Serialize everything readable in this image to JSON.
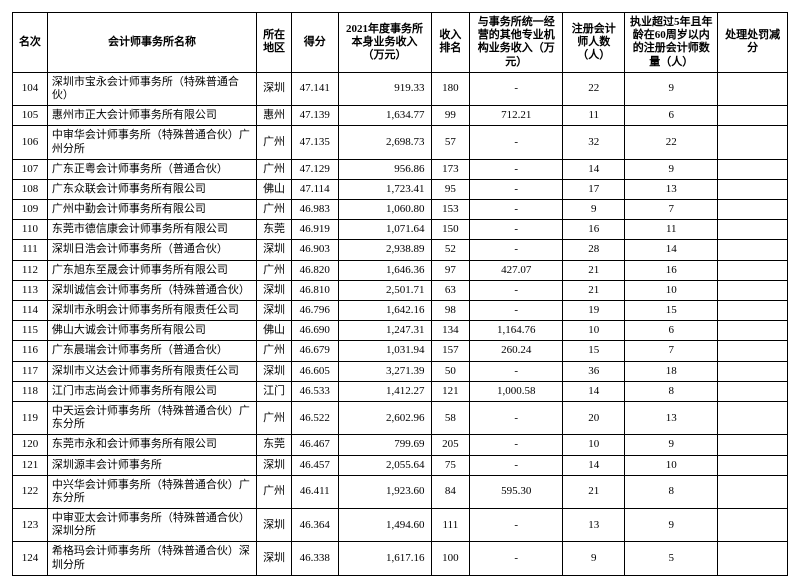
{
  "table": {
    "headers": {
      "rank": "名次",
      "name": "会计师事务所名称",
      "region": "所在地区",
      "score": "得分",
      "revenue": "2021年度事务所本身业务收入（万元）",
      "rev_rank": "收入排名",
      "other_rev": "与事务所统一经营的其他专业机构业务收入（万元）",
      "cpa_count": "注册会计师人数（人）",
      "age_cpa": "执业超过5年且年龄在60周岁以内的注册会计师数量（人）",
      "penalty": "处理处罚减分"
    },
    "rows": [
      {
        "rank": "104",
        "name": "深圳市宝永会计师事务所（特殊普通合伙）",
        "region": "深圳",
        "score": "47.141",
        "revenue": "919.33",
        "rev_rank": "180",
        "other_rev": "-",
        "cpa_count": "22",
        "age_cpa": "9",
        "penalty": ""
      },
      {
        "rank": "105",
        "name": "惠州市正大会计师事务所有限公司",
        "region": "惠州",
        "score": "47.139",
        "revenue": "1,634.77",
        "rev_rank": "99",
        "other_rev": "712.21",
        "cpa_count": "11",
        "age_cpa": "6",
        "penalty": ""
      },
      {
        "rank": "106",
        "name": "中审华会计师事务所（特殊普通合伙）广州分所",
        "region": "广州",
        "score": "47.135",
        "revenue": "2,698.73",
        "rev_rank": "57",
        "other_rev": "-",
        "cpa_count": "32",
        "age_cpa": "22",
        "penalty": ""
      },
      {
        "rank": "107",
        "name": "广东正粤会计师事务所（普通合伙）",
        "region": "广州",
        "score": "47.129",
        "revenue": "956.86",
        "rev_rank": "173",
        "other_rev": "-",
        "cpa_count": "14",
        "age_cpa": "9",
        "penalty": ""
      },
      {
        "rank": "108",
        "name": "广东众联会计师事务所有限公司",
        "region": "佛山",
        "score": "47.114",
        "revenue": "1,723.41",
        "rev_rank": "95",
        "other_rev": "-",
        "cpa_count": "17",
        "age_cpa": "13",
        "penalty": ""
      },
      {
        "rank": "109",
        "name": "广州中勤会计师事务所有限公司",
        "region": "广州",
        "score": "46.983",
        "revenue": "1,060.80",
        "rev_rank": "153",
        "other_rev": "-",
        "cpa_count": "9",
        "age_cpa": "7",
        "penalty": ""
      },
      {
        "rank": "110",
        "name": "东莞市德信康会计师事务所有限公司",
        "region": "东莞",
        "score": "46.919",
        "revenue": "1,071.64",
        "rev_rank": "150",
        "other_rev": "-",
        "cpa_count": "16",
        "age_cpa": "11",
        "penalty": ""
      },
      {
        "rank": "111",
        "name": "深圳日浩会计师事务所（普通合伙）",
        "region": "深圳",
        "score": "46.903",
        "revenue": "2,938.89",
        "rev_rank": "52",
        "other_rev": "-",
        "cpa_count": "28",
        "age_cpa": "14",
        "penalty": ""
      },
      {
        "rank": "112",
        "name": "广东旭东至晟会计师事务所有限公司",
        "region": "广州",
        "score": "46.820",
        "revenue": "1,646.36",
        "rev_rank": "97",
        "other_rev": "427.07",
        "cpa_count": "21",
        "age_cpa": "16",
        "penalty": ""
      },
      {
        "rank": "113",
        "name": "深圳诚信会计师事务所（特殊普通合伙）",
        "region": "深圳",
        "score": "46.810",
        "revenue": "2,501.71",
        "rev_rank": "63",
        "other_rev": "-",
        "cpa_count": "21",
        "age_cpa": "10",
        "penalty": ""
      },
      {
        "rank": "114",
        "name": "深圳市永明会计师事务所有限责任公司",
        "region": "深圳",
        "score": "46.796",
        "revenue": "1,642.16",
        "rev_rank": "98",
        "other_rev": "-",
        "cpa_count": "19",
        "age_cpa": "15",
        "penalty": ""
      },
      {
        "rank": "115",
        "name": "佛山大诚会计师事务所有限公司",
        "region": "佛山",
        "score": "46.690",
        "revenue": "1,247.31",
        "rev_rank": "134",
        "other_rev": "1,164.76",
        "cpa_count": "10",
        "age_cpa": "6",
        "penalty": ""
      },
      {
        "rank": "116",
        "name": "广东晨瑞会计师事务所（普通合伙）",
        "region": "广州",
        "score": "46.679",
        "revenue": "1,031.94",
        "rev_rank": "157",
        "other_rev": "260.24",
        "cpa_count": "15",
        "age_cpa": "7",
        "penalty": ""
      },
      {
        "rank": "117",
        "name": "深圳市义达会计师事务所有限责任公司",
        "region": "深圳",
        "score": "46.605",
        "revenue": "3,271.39",
        "rev_rank": "50",
        "other_rev": "-",
        "cpa_count": "36",
        "age_cpa": "18",
        "penalty": ""
      },
      {
        "rank": "118",
        "name": "江门市志尚会计师事务所有限公司",
        "region": "江门",
        "score": "46.533",
        "revenue": "1,412.27",
        "rev_rank": "121",
        "other_rev": "1,000.58",
        "cpa_count": "14",
        "age_cpa": "8",
        "penalty": ""
      },
      {
        "rank": "119",
        "name": "中天运会计师事务所（特殊普通合伙）广东分所",
        "region": "广州",
        "score": "46.522",
        "revenue": "2,602.96",
        "rev_rank": "58",
        "other_rev": "-",
        "cpa_count": "20",
        "age_cpa": "13",
        "penalty": ""
      },
      {
        "rank": "120",
        "name": "东莞市永和会计师事务所有限公司",
        "region": "东莞",
        "score": "46.467",
        "revenue": "799.69",
        "rev_rank": "205",
        "other_rev": "-",
        "cpa_count": "10",
        "age_cpa": "9",
        "penalty": ""
      },
      {
        "rank": "121",
        "name": "深圳源丰会计师事务所",
        "region": "深圳",
        "score": "46.457",
        "revenue": "2,055.64",
        "rev_rank": "75",
        "other_rev": "-",
        "cpa_count": "14",
        "age_cpa": "10",
        "penalty": ""
      },
      {
        "rank": "122",
        "name": "中兴华会计师事务所（特殊普通合伙）广东分所",
        "region": "广州",
        "score": "46.411",
        "revenue": "1,923.60",
        "rev_rank": "84",
        "other_rev": "595.30",
        "cpa_count": "21",
        "age_cpa": "8",
        "penalty": ""
      },
      {
        "rank": "123",
        "name": "中审亚太会计师事务所（特殊普通合伙）深圳分所",
        "region": "深圳",
        "score": "46.364",
        "revenue": "1,494.60",
        "rev_rank": "111",
        "other_rev": "-",
        "cpa_count": "13",
        "age_cpa": "9",
        "penalty": ""
      },
      {
        "rank": "124",
        "name": "希格玛会计师事务所（特殊普通合伙）深圳分所",
        "region": "深圳",
        "score": "46.338",
        "revenue": "1,617.16",
        "rev_rank": "100",
        "other_rev": "-",
        "cpa_count": "9",
        "age_cpa": "5",
        "penalty": ""
      }
    ],
    "style": {
      "border_color": "#000000",
      "background_color": "#ffffff",
      "font_size_pt": 8,
      "header_font_weight": "bold"
    }
  }
}
